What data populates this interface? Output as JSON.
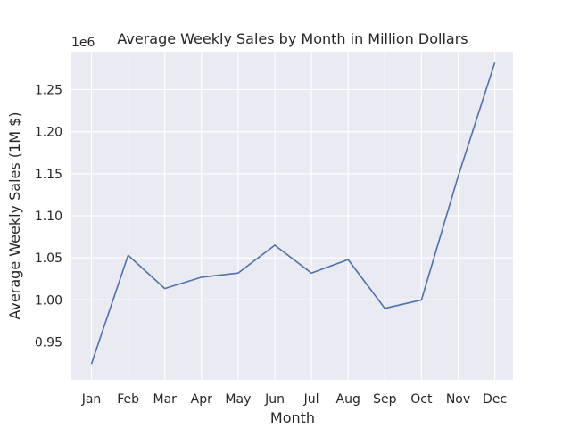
{
  "chart_data": {
    "type": "line",
    "title": "Average Weekly Sales by Month in Million Dollars",
    "xlabel": "Month",
    "ylabel": "Average Weekly Sales (1M $)",
    "y_offset_label": "1e6",
    "categories": [
      "Jan",
      "Feb",
      "Mar",
      "Apr",
      "May",
      "Jun",
      "Jul",
      "Aug",
      "Sep",
      "Oct",
      "Nov",
      "Dec"
    ],
    "series": [
      {
        "values": [
          924000,
          1053000,
          1013500,
          1027000,
          1032000,
          1065000,
          1032000,
          1048000,
          990000,
          1000000,
          1147000,
          1282000
        ]
      }
    ],
    "ylim": [
      905000,
      1295000
    ],
    "yticks": [
      950000,
      1000000,
      1050000,
      1100000,
      1150000,
      1200000,
      1250000
    ],
    "ytick_labels": [
      "0.95",
      "1.00",
      "1.05",
      "1.10",
      "1.15",
      "1.20",
      "1.25"
    ],
    "grid": true,
    "colors": {
      "plot_bg": "#eaeaf2",
      "grid": "#ffffff",
      "line": "#4c72b0"
    }
  }
}
